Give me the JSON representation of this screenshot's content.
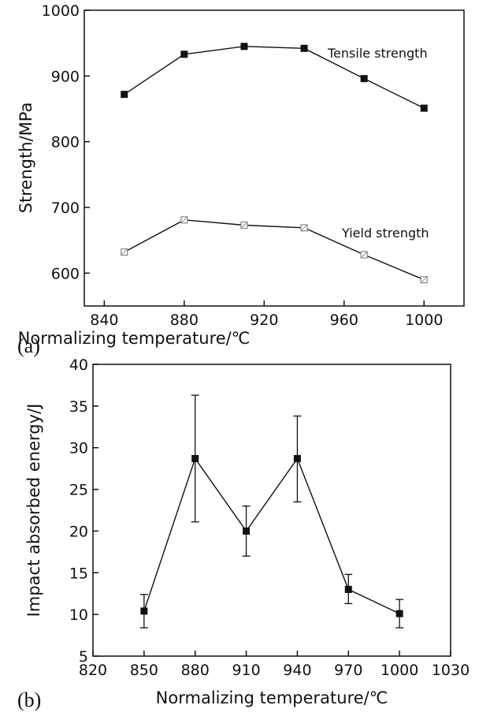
{
  "chart_data": [
    {
      "type": "line",
      "panel_label": "(a)",
      "xlabel": "Normalizing temperature/℃",
      "ylabel": "Strength/MPa",
      "xlim": [
        830,
        1020
      ],
      "ylim": [
        550,
        1000
      ],
      "xticks": [
        840,
        880,
        920,
        960,
        1000
      ],
      "yticks": [
        600,
        700,
        800,
        900,
        1000
      ],
      "x": [
        850,
        880,
        910,
        940,
        970,
        1000
      ],
      "series": [
        {
          "name": "Tensile strength",
          "marker": "filled-square",
          "color": "#111111",
          "values": [
            872,
            933,
            945,
            942,
            896,
            851
          ]
        },
        {
          "name": "Yield strength",
          "marker": "open-square",
          "color": "#888888",
          "values": [
            632,
            681,
            673,
            669,
            628,
            590
          ]
        }
      ],
      "grid": false
    },
    {
      "type": "line",
      "panel_label": "(b)",
      "xlabel": "Normalizing temperature/℃",
      "ylabel": "Impact absorbed energy/J",
      "xlim": [
        820,
        1030
      ],
      "ylim": [
        5,
        40
      ],
      "xticks": [
        820,
        850,
        880,
        910,
        940,
        970,
        1000,
        1030
      ],
      "yticks": [
        5,
        10,
        15,
        20,
        25,
        30,
        35,
        40
      ],
      "x": [
        850,
        880,
        910,
        940,
        970,
        1000
      ],
      "series": [
        {
          "marker": "filled-square",
          "color": "#111111",
          "values": [
            10.4,
            28.7,
            20.0,
            28.7,
            13.0,
            10.1
          ],
          "error_low": [
            8.4,
            21.1,
            17.0,
            23.5,
            11.3,
            8.4
          ],
          "error_high": [
            12.4,
            36.3,
            23.0,
            33.8,
            14.8,
            11.8
          ]
        }
      ],
      "grid": false
    }
  ]
}
